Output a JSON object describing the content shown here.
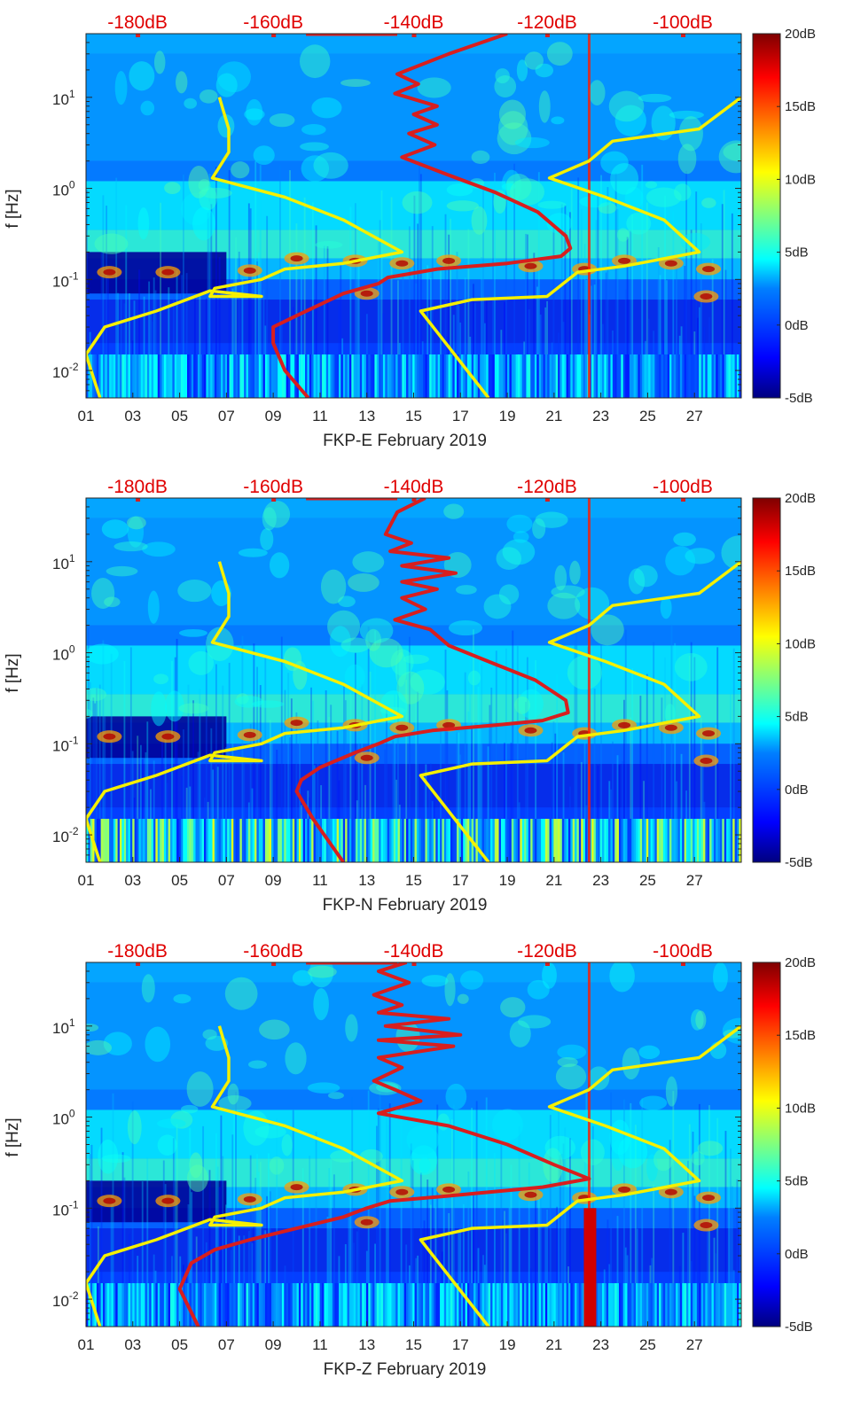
{
  "colors": {
    "yellow_curve": "#f5f000",
    "red_curve": "#d81e1e",
    "top_db_labels": "#e00000",
    "background_low": "#00008f"
  },
  "colormap": [
    "#00007f",
    "#0000ff",
    "#007fff",
    "#00ffff",
    "#7fff7f",
    "#ffff00",
    "#ff7f00",
    "#ff0000",
    "#7f0000"
  ],
  "chart_data": [
    {
      "type": "heatmap",
      "title": "",
      "xlabel": "FKP-E February 2019",
      "ylabel": "f [Hz]",
      "xlim": [
        1,
        29
      ],
      "ylim": [
        0.005,
        50
      ],
      "yscale": "log",
      "x_ticks": [
        "01",
        "03",
        "05",
        "07",
        "09",
        "11",
        "13",
        "15",
        "17",
        "19",
        "21",
        "23",
        "25",
        "27"
      ],
      "y_ticks": [
        {
          "value": 0.01,
          "base": "10",
          "exp": "-2"
        },
        {
          "value": 0.1,
          "base": "10",
          "exp": "-1"
        },
        {
          "value": 1,
          "base": "10",
          "exp": "0"
        },
        {
          "value": 10,
          "base": "10",
          "exp": "1"
        }
      ],
      "top_axis_labels": [
        {
          "label": "-180dB",
          "date": 3.2
        },
        {
          "label": "-160dB",
          "date": 9.0
        },
        {
          "label": "-140dB",
          "date": 15.0
        },
        {
          "label": "-120dB",
          "date": 20.7
        },
        {
          "label": "-100dB",
          "date": 26.5
        }
      ],
      "colorbar": {
        "min": -5,
        "max": 20,
        "ticks": [
          "20dB",
          "15dB",
          "10dB",
          "5dB",
          "0dB",
          "-5dB"
        ]
      },
      "yellow_curves": [
        [
          [
            6.7,
            10
          ],
          [
            7.1,
            4.5
          ],
          [
            7.1,
            2.5
          ],
          [
            6.4,
            1.3
          ],
          [
            9.5,
            0.8
          ],
          [
            12,
            0.45
          ],
          [
            14.5,
            0.2
          ],
          [
            12,
            0.15
          ],
          [
            9.5,
            0.13
          ],
          [
            8.5,
            0.1
          ],
          [
            6.5,
            0.08
          ],
          [
            6.3,
            0.065
          ],
          [
            8.5,
            0.065
          ],
          [
            6.3,
            0.075
          ],
          [
            4,
            0.045
          ],
          [
            1.8,
            0.03
          ],
          [
            1,
            0.015
          ],
          [
            1.6,
            0.005
          ]
        ],
        [
          [
            29,
            10
          ],
          [
            27.2,
            4.5
          ],
          [
            23.5,
            3.3
          ],
          [
            22.5,
            2
          ],
          [
            20.8,
            1.3
          ],
          [
            23.2,
            0.8
          ],
          [
            25.7,
            0.45
          ],
          [
            27.2,
            0.2
          ],
          [
            24,
            0.14
          ],
          [
            22,
            0.12
          ],
          [
            20.7,
            0.065
          ],
          [
            17.5,
            0.06
          ],
          [
            15.3,
            0.045
          ],
          [
            18.2,
            0.005
          ]
        ]
      ],
      "red_curve": [
        [
          19,
          50
        ],
        [
          16.5,
          30
        ],
        [
          14.3,
          18
        ],
        [
          15.2,
          14
        ],
        [
          14.2,
          11
        ],
        [
          16,
          8
        ],
        [
          15,
          6.5
        ],
        [
          16,
          5
        ],
        [
          14.8,
          4
        ],
        [
          15.9,
          3
        ],
        [
          14.5,
          2.2
        ],
        [
          16.5,
          1.4
        ],
        [
          18.5,
          0.9
        ],
        [
          20.3,
          0.55
        ],
        [
          21.5,
          0.3
        ],
        [
          21.7,
          0.22
        ],
        [
          21.3,
          0.18
        ],
        [
          19,
          0.15
        ],
        [
          16,
          0.13
        ],
        [
          13.9,
          0.105
        ],
        [
          13.5,
          0.09
        ],
        [
          12,
          0.07
        ],
        [
          10,
          0.04
        ],
        [
          9,
          0.03
        ],
        [
          9,
          0.02
        ],
        [
          9.5,
          0.01
        ],
        [
          10.5,
          0.005
        ]
      ],
      "red_line_level": 49.5,
      "bright_column_date": 22.5,
      "lowband_palette": "blue"
    },
    {
      "type": "heatmap",
      "title": "",
      "xlabel": "FKP-N February 2019",
      "ylabel": "f [Hz]",
      "xlim": [
        1,
        29
      ],
      "ylim": [
        0.005,
        50
      ],
      "yscale": "log",
      "x_ticks": [
        "01",
        "03",
        "05",
        "07",
        "09",
        "11",
        "13",
        "15",
        "17",
        "19",
        "21",
        "23",
        "25",
        "27"
      ],
      "y_ticks": [
        {
          "value": 0.01,
          "base": "10",
          "exp": "-2"
        },
        {
          "value": 0.1,
          "base": "10",
          "exp": "-1"
        },
        {
          "value": 1,
          "base": "10",
          "exp": "0"
        },
        {
          "value": 10,
          "base": "10",
          "exp": "1"
        }
      ],
      "top_axis_labels": [
        {
          "label": "-180dB",
          "date": 3.2
        },
        {
          "label": "-160dB",
          "date": 9.0
        },
        {
          "label": "-140dB",
          "date": 15.0
        },
        {
          "label": "-120dB",
          "date": 20.7
        },
        {
          "label": "-100dB",
          "date": 26.5
        }
      ],
      "colorbar": {
        "min": -5,
        "max": 20,
        "ticks": [
          "20dB",
          "15dB",
          "10dB",
          "5dB",
          "0dB",
          "-5dB"
        ]
      },
      "yellow_curves": [
        [
          [
            6.7,
            10
          ],
          [
            7.1,
            4.5
          ],
          [
            7.1,
            2.5
          ],
          [
            6.4,
            1.3
          ],
          [
            9.5,
            0.8
          ],
          [
            12,
            0.45
          ],
          [
            14.5,
            0.2
          ],
          [
            12,
            0.15
          ],
          [
            9.5,
            0.13
          ],
          [
            8.5,
            0.1
          ],
          [
            6.5,
            0.08
          ],
          [
            6.3,
            0.065
          ],
          [
            8.5,
            0.065
          ],
          [
            6.3,
            0.075
          ],
          [
            4,
            0.045
          ],
          [
            1.8,
            0.03
          ],
          [
            1,
            0.015
          ],
          [
            1.6,
            0.005
          ]
        ],
        [
          [
            29,
            10
          ],
          [
            27.2,
            4.5
          ],
          [
            23.5,
            3.3
          ],
          [
            22.5,
            2
          ],
          [
            20.8,
            1.3
          ],
          [
            23.2,
            0.8
          ],
          [
            25.7,
            0.45
          ],
          [
            27.2,
            0.2
          ],
          [
            24,
            0.14
          ],
          [
            22,
            0.12
          ],
          [
            20.7,
            0.065
          ],
          [
            17.5,
            0.06
          ],
          [
            15.3,
            0.045
          ],
          [
            18.2,
            0.005
          ]
        ]
      ],
      "red_curve": [
        [
          15.5,
          50
        ],
        [
          14.3,
          35
        ],
        [
          13.8,
          20
        ],
        [
          14.9,
          16
        ],
        [
          14,
          13
        ],
        [
          16.5,
          11
        ],
        [
          14.5,
          9
        ],
        [
          16.8,
          7.5
        ],
        [
          14.5,
          6
        ],
        [
          16,
          5
        ],
        [
          14.5,
          4
        ],
        [
          15.5,
          3
        ],
        [
          14.2,
          2.3
        ],
        [
          15.7,
          1.8
        ],
        [
          16.5,
          1.2
        ],
        [
          18.2,
          0.8
        ],
        [
          20.2,
          0.5
        ],
        [
          21.5,
          0.3
        ],
        [
          21.6,
          0.22
        ],
        [
          20.5,
          0.18
        ],
        [
          18.5,
          0.16
        ],
        [
          15.8,
          0.14
        ],
        [
          14.2,
          0.12
        ],
        [
          13.5,
          0.1
        ],
        [
          12.5,
          0.08
        ],
        [
          11,
          0.055
        ],
        [
          10.2,
          0.04
        ],
        [
          10,
          0.03
        ],
        [
          10.7,
          0.015
        ],
        [
          12,
          0.005
        ]
      ],
      "red_line_level": 49.5,
      "bright_column_date": 22.5,
      "lowband_palette": "mixed"
    },
    {
      "type": "heatmap",
      "title": "",
      "xlabel": "FKP-Z February 2019",
      "ylabel": "f [Hz]",
      "xlim": [
        1,
        29
      ],
      "ylim": [
        0.005,
        50
      ],
      "yscale": "log",
      "x_ticks": [
        "01",
        "03",
        "05",
        "07",
        "09",
        "11",
        "13",
        "15",
        "17",
        "19",
        "21",
        "23",
        "25",
        "27"
      ],
      "y_ticks": [
        {
          "value": 0.01,
          "base": "10",
          "exp": "-2"
        },
        {
          "value": 0.1,
          "base": "10",
          "exp": "-1"
        },
        {
          "value": 1,
          "base": "10",
          "exp": "0"
        },
        {
          "value": 10,
          "base": "10",
          "exp": "1"
        }
      ],
      "top_axis_labels": [
        {
          "label": "-180dB",
          "date": 3.2
        },
        {
          "label": "-160dB",
          "date": 9.0
        },
        {
          "label": "-140dB",
          "date": 15.0
        },
        {
          "label": "-120dB",
          "date": 20.7
        },
        {
          "label": "-100dB",
          "date": 26.5
        }
      ],
      "colorbar": {
        "min": -5,
        "max": 20,
        "ticks": [
          "20dB",
          "15dB",
          "10dB",
          "5dB",
          "0dB",
          "-5dB"
        ]
      },
      "yellow_curves": [
        [
          [
            6.7,
            10
          ],
          [
            7.1,
            4.5
          ],
          [
            7.1,
            2.5
          ],
          [
            6.4,
            1.3
          ],
          [
            9.5,
            0.8
          ],
          [
            12,
            0.45
          ],
          [
            14.5,
            0.2
          ],
          [
            12,
            0.15
          ],
          [
            9.5,
            0.13
          ],
          [
            8.5,
            0.1
          ],
          [
            6.5,
            0.08
          ],
          [
            6.3,
            0.065
          ],
          [
            8.5,
            0.065
          ],
          [
            6.3,
            0.075
          ],
          [
            4,
            0.045
          ],
          [
            1.8,
            0.03
          ],
          [
            1,
            0.015
          ],
          [
            1.6,
            0.005
          ]
        ],
        [
          [
            29,
            10
          ],
          [
            27.2,
            4.5
          ],
          [
            23.5,
            3.3
          ],
          [
            22.5,
            2
          ],
          [
            20.8,
            1.3
          ],
          [
            23.2,
            0.8
          ],
          [
            25.7,
            0.45
          ],
          [
            27.2,
            0.2
          ],
          [
            24,
            0.14
          ],
          [
            22,
            0.12
          ],
          [
            20.7,
            0.065
          ],
          [
            17.5,
            0.06
          ],
          [
            15.3,
            0.045
          ],
          [
            18.2,
            0.005
          ]
        ]
      ],
      "red_curve": [
        [
          14.7,
          50
        ],
        [
          13.5,
          40
        ],
        [
          14.8,
          30
        ],
        [
          13.3,
          22
        ],
        [
          14.5,
          17
        ],
        [
          13.5,
          14
        ],
        [
          16.5,
          12
        ],
        [
          13.8,
          10
        ],
        [
          17,
          8
        ],
        [
          13.5,
          7
        ],
        [
          16.7,
          6
        ],
        [
          13.5,
          4.5
        ],
        [
          14.5,
          3.5
        ],
        [
          13.3,
          2.5
        ],
        [
          14.2,
          2
        ],
        [
          15.3,
          1.5
        ],
        [
          13.5,
          1.1
        ],
        [
          16.5,
          0.8
        ],
        [
          19,
          0.5
        ],
        [
          21,
          0.3
        ],
        [
          22.5,
          0.21
        ],
        [
          20.5,
          0.17
        ],
        [
          17,
          0.14
        ],
        [
          14,
          0.12
        ],
        [
          13,
          0.1
        ],
        [
          12,
          0.08
        ],
        [
          10,
          0.06
        ],
        [
          8,
          0.045
        ],
        [
          6.5,
          0.035
        ],
        [
          5.5,
          0.025
        ],
        [
          5,
          0.013
        ],
        [
          5.8,
          0.005
        ]
      ],
      "red_line_level": 49.5,
      "bright_column_date": 22.5,
      "lowband_palette": "blue"
    }
  ]
}
